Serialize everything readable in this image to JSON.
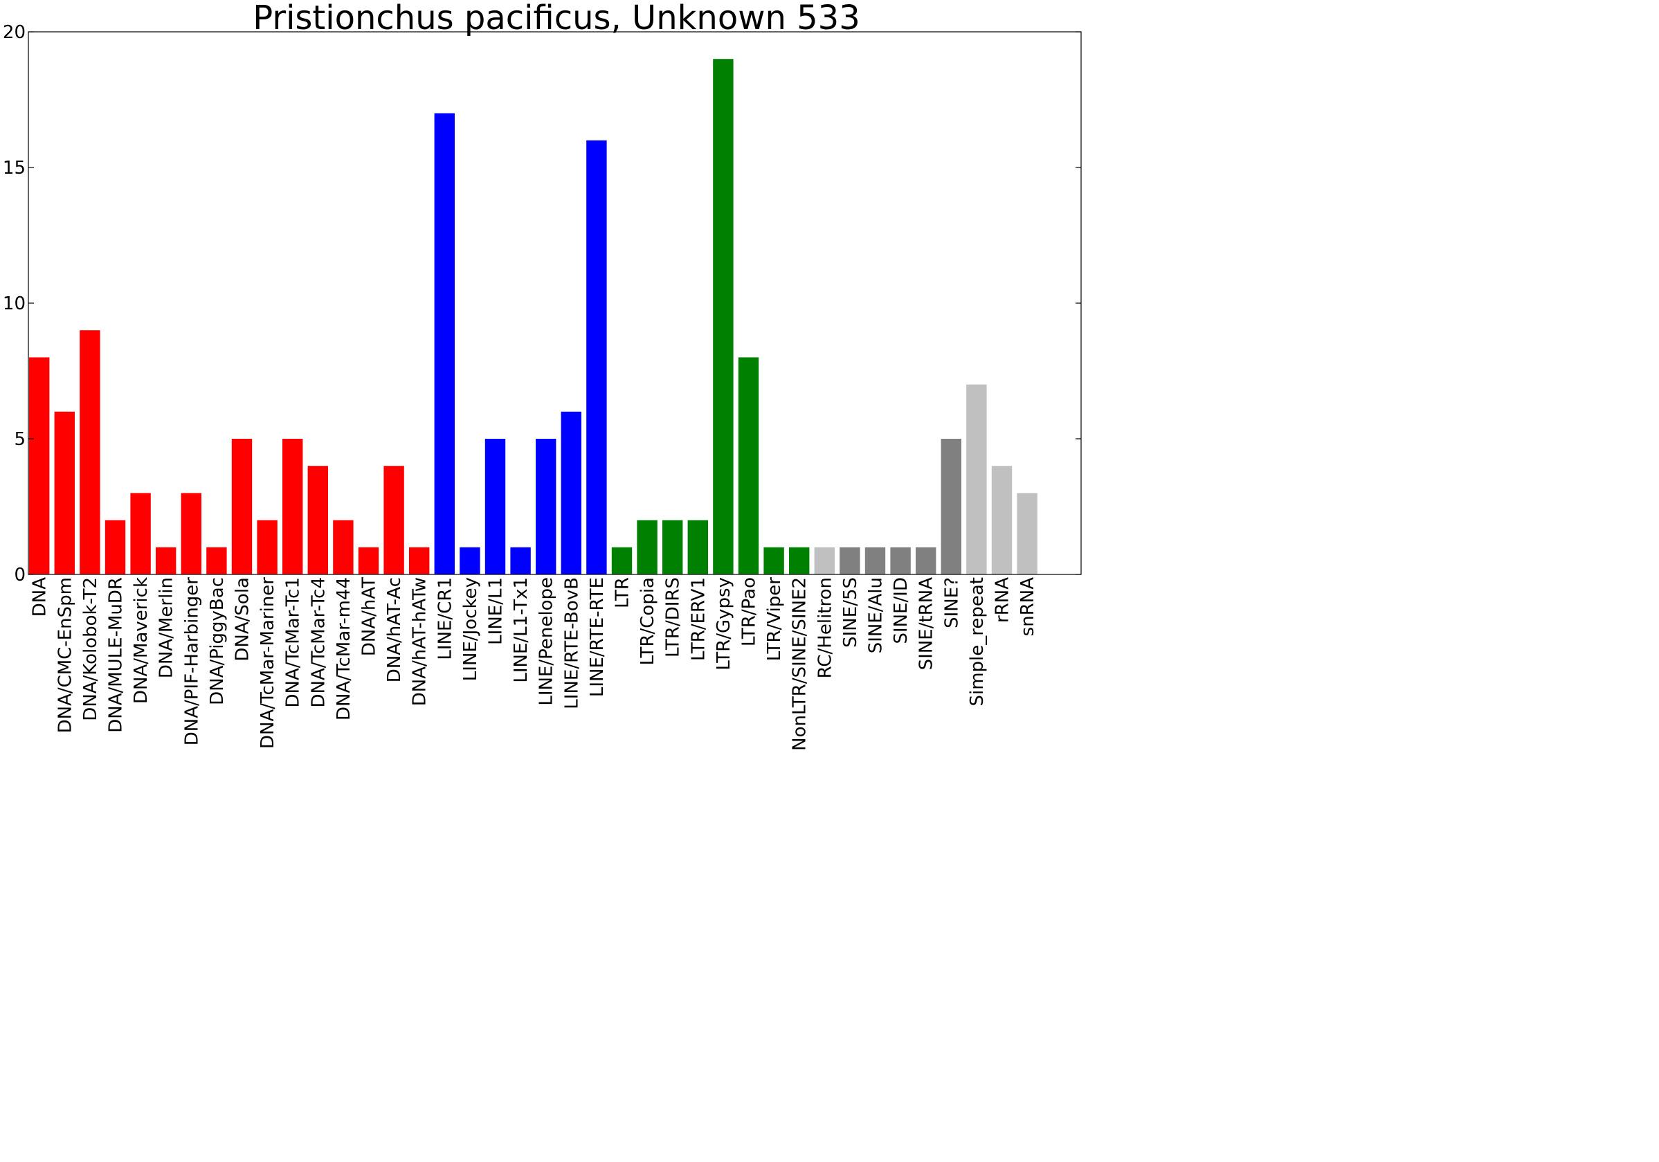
{
  "chart_data": {
    "type": "bar",
    "title": "Pristionchus pacificus, Unknown 533",
    "xlabel": "",
    "ylabel": "",
    "ylim": [
      0,
      20
    ],
    "yticks": [
      0,
      5,
      10,
      15,
      20
    ],
    "grid": false,
    "legend": "none",
    "categories": [
      "DNA",
      "DNA/CMC-EnSpm",
      "DNA/Kolobok-T2",
      "DNA/MULE-MuDR",
      "DNA/Maverick",
      "DNA/Merlin",
      "DNA/PIF-Harbinger",
      "DNA/PiggyBac",
      "DNA/Sola",
      "DNA/TcMar-Mariner",
      "DNA/TcMar-Tc1",
      "DNA/TcMar-Tc4",
      "DNA/TcMar-m44",
      "DNA/hAT",
      "DNA/hAT-Ac",
      "DNA/hAT-hATw",
      "LINE/CR1",
      "LINE/Jockey",
      "LINE/L1",
      "LINE/L1-Tx1",
      "LINE/Penelope",
      "LINE/RTE-BovB",
      "LINE/RTE-RTE",
      "LTR",
      "LTR/Copia",
      "LTR/DIRS",
      "LTR/ERV1",
      "LTR/Gypsy",
      "LTR/Pao",
      "LTR/Viper",
      "NonLTR/SINE/SINE2",
      "RC/Helitron",
      "SINE/5S",
      "SINE/Alu",
      "SINE/ID",
      "SINE/tRNA",
      "SINE?",
      "Simple_repeat",
      "rRNA",
      "snRNA"
    ],
    "values": [
      8,
      6,
      9,
      2,
      3,
      1,
      3,
      1,
      5,
      2,
      5,
      4,
      2,
      1,
      4,
      1,
      17,
      1,
      5,
      1,
      5,
      6,
      16,
      1,
      2,
      2,
      2,
      19,
      8,
      1,
      1,
      1,
      1,
      1,
      1,
      1,
      5,
      7,
      4,
      3
    ],
    "bar_colors": [
      "#ff0000",
      "#ff0000",
      "#ff0000",
      "#ff0000",
      "#ff0000",
      "#ff0000",
      "#ff0000",
      "#ff0000",
      "#ff0000",
      "#ff0000",
      "#ff0000",
      "#ff0000",
      "#ff0000",
      "#ff0000",
      "#ff0000",
      "#ff0000",
      "#0000ff",
      "#0000ff",
      "#0000ff",
      "#0000ff",
      "#0000ff",
      "#0000ff",
      "#0000ff",
      "#008000",
      "#008000",
      "#008000",
      "#008000",
      "#008000",
      "#008000",
      "#008000",
      "#008000",
      "#c0c0c0",
      "#808080",
      "#808080",
      "#808080",
      "#808080",
      "#808080",
      "#c0c0c0",
      "#c0c0c0",
      "#c0c0c0"
    ]
  }
}
